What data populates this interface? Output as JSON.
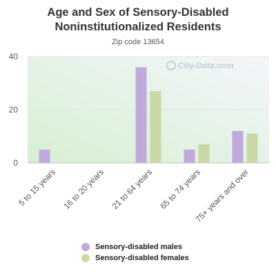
{
  "header": {
    "title_line1": "Age and Sex of Sensory-Disabled",
    "title_line2": "Noninstitutionalized Residents",
    "subtitle": "Zip code 13654"
  },
  "watermark": {
    "text": "City-Data.com"
  },
  "colors": {
    "males": "#c1aadb",
    "females": "#c8d9a7",
    "bg_top": "#f4f5fb",
    "bg_bottom": "#d6f0d2"
  },
  "chart_data": {
    "type": "bar",
    "title": "Age and Sex of Sensory-Disabled Noninstitutionalized Residents",
    "subtitle": "Zip code 13654",
    "categories": [
      "5 to 15 years",
      "16 to 20 years",
      "21 to 64 years",
      "65 to 74 years",
      "75+ years and over"
    ],
    "series": [
      {
        "name": "Sensory-disabled males",
        "values": [
          5,
          0,
          36,
          5,
          12
        ]
      },
      {
        "name": "Sensory-disabled females",
        "values": [
          0,
          0,
          27,
          7,
          11
        ]
      }
    ],
    "ylim": [
      0,
      40
    ],
    "yticks": [
      "0",
      "20",
      "40"
    ],
    "grid": true,
    "legend": "bottom"
  }
}
